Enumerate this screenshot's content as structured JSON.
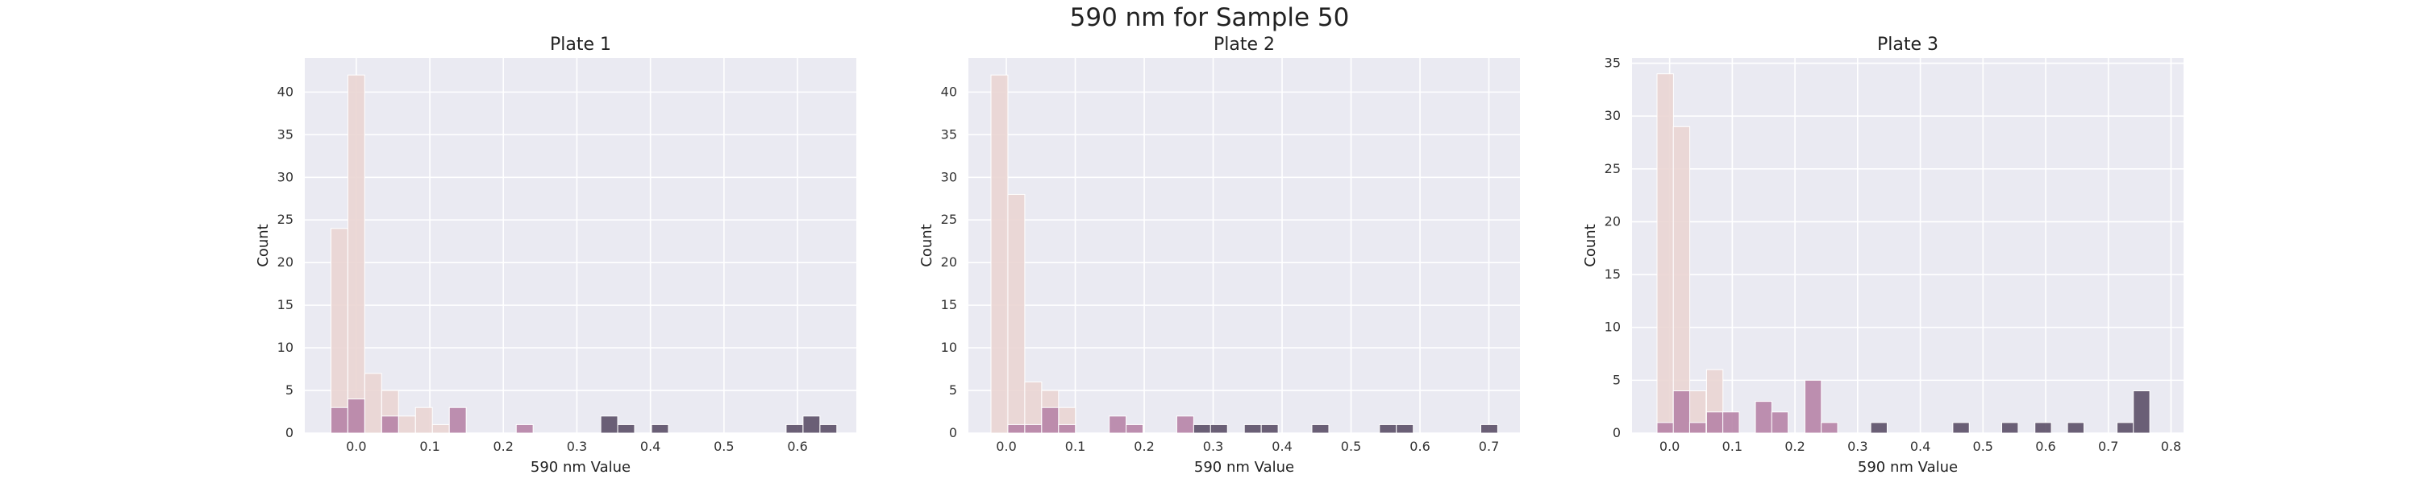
{
  "suptitle": "590 nm for Sample 50",
  "chart_data": [
    {
      "type": "bar",
      "title": "Plate 1",
      "xlabel": "590 nm Value",
      "ylabel": "Count",
      "xlim": [
        -0.07,
        0.68
      ],
      "ylim": [
        0,
        44
      ],
      "xticks": [
        "0.0",
        "0.1",
        "0.2",
        "0.3",
        "0.4",
        "0.5",
        "0.6"
      ],
      "yticks": [
        "0",
        "5",
        "10",
        "15",
        "20",
        "25",
        "30",
        "35",
        "40"
      ],
      "bin_width": 0.0229,
      "series": [
        {
          "color": "#ead5d3",
          "points": [
            [
              -0.023,
              24
            ],
            [
              0.0,
              42
            ],
            [
              0.023,
              7
            ],
            [
              0.046,
              5
            ],
            [
              0.069,
              2
            ],
            [
              0.092,
              3
            ],
            [
              0.115,
              1
            ]
          ]
        },
        {
          "color": "#b784a7",
          "points": [
            [
              -0.023,
              3
            ],
            [
              0.0,
              4
            ],
            [
              0.046,
              2
            ],
            [
              0.138,
              3
            ],
            [
              0.229,
              1
            ]
          ]
        },
        {
          "color": "#5c5068",
          "points": [
            [
              0.344,
              2
            ],
            [
              0.367,
              1
            ],
            [
              0.413,
              1
            ],
            [
              0.596,
              1
            ],
            [
              0.619,
              2
            ],
            [
              0.642,
              1
            ]
          ]
        }
      ]
    },
    {
      "type": "bar",
      "title": "Plate 2",
      "xlabel": "590 nm Value",
      "ylabel": "Count",
      "xlim": [
        -0.055,
        0.745
      ],
      "ylim": [
        0,
        44
      ],
      "xticks": [
        "0.0",
        "0.1",
        "0.2",
        "0.3",
        "0.4",
        "0.5",
        "0.6",
        "0.7"
      ],
      "yticks": [
        "0",
        "5",
        "10",
        "15",
        "20",
        "25",
        "30",
        "35",
        "40"
      ],
      "bin_width": 0.0245,
      "series": [
        {
          "color": "#ead5d3",
          "points": [
            [
              -0.01,
              42
            ],
            [
              0.0145,
              28
            ],
            [
              0.039,
              6
            ],
            [
              0.0635,
              5
            ],
            [
              0.088,
              3
            ]
          ]
        },
        {
          "color": "#b784a7",
          "points": [
            [
              0.0145,
              1
            ],
            [
              0.039,
              1
            ],
            [
              0.0635,
              3
            ],
            [
              0.088,
              1
            ],
            [
              0.1615,
              2
            ],
            [
              0.186,
              1
            ],
            [
              0.2595,
              2
            ]
          ]
        },
        {
          "color": "#5c5068",
          "points": [
            [
              0.284,
              1
            ],
            [
              0.3085,
              1
            ],
            [
              0.3575,
              1
            ],
            [
              0.382,
              1
            ],
            [
              0.4555,
              1
            ],
            [
              0.5535,
              1
            ],
            [
              0.578,
              1
            ],
            [
              0.7005,
              1
            ]
          ]
        }
      ]
    },
    {
      "type": "bar",
      "title": "Plate 3",
      "xlabel": "590 nm Value",
      "ylabel": "Count",
      "xlim": [
        -0.06,
        0.82
      ],
      "ylim": [
        0,
        35.5
      ],
      "xticks": [
        "0.0",
        "0.1",
        "0.2",
        "0.3",
        "0.4",
        "0.5",
        "0.6",
        "0.7",
        "0.8"
      ],
      "yticks": [
        "0",
        "5",
        "10",
        "15",
        "20",
        "25",
        "30",
        "35"
      ],
      "bin_width": 0.0262,
      "series": [
        {
          "color": "#ead5d3",
          "points": [
            [
              -0.007,
              34
            ],
            [
              0.019,
              29
            ],
            [
              0.045,
              4
            ],
            [
              0.072,
              6
            ]
          ]
        },
        {
          "color": "#b784a7",
          "points": [
            [
              -0.007,
              1
            ],
            [
              0.019,
              4
            ],
            [
              0.045,
              1
            ],
            [
              0.072,
              2
            ],
            [
              0.098,
              2
            ],
            [
              0.15,
              3
            ],
            [
              0.176,
              2
            ],
            [
              0.229,
              5
            ],
            [
              0.255,
              1
            ]
          ]
        },
        {
          "color": "#5c5068",
          "points": [
            [
              0.334,
              1
            ],
            [
              0.465,
              1
            ],
            [
              0.543,
              1
            ],
            [
              0.596,
              1
            ],
            [
              0.648,
              1
            ],
            [
              0.727,
              1
            ],
            [
              0.753,
              4
            ]
          ]
        }
      ]
    }
  ]
}
